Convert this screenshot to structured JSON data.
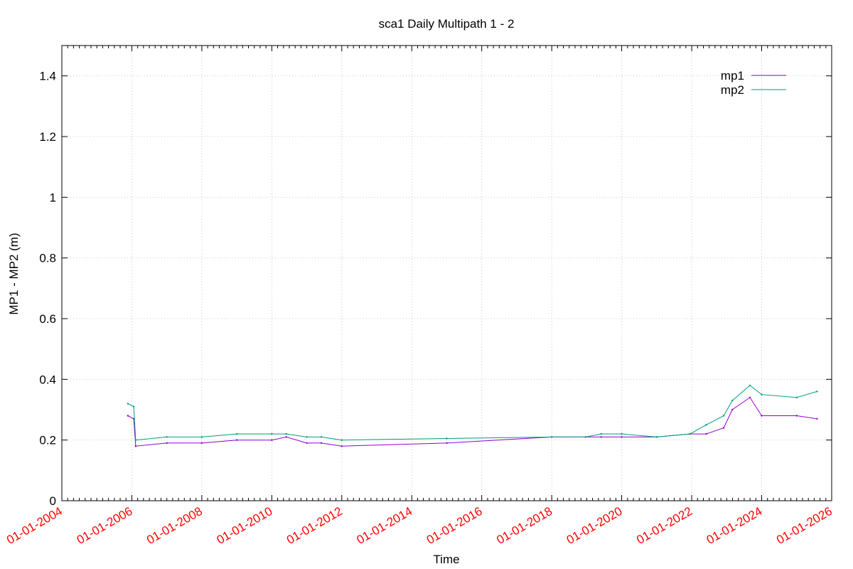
{
  "chart_data": {
    "type": "line",
    "title": "sca1 Daily Multipath 1 - 2",
    "xlabel": "Time",
    "ylabel": "MP1 - MP2 (m)",
    "ylim": [
      0,
      1.5
    ],
    "xlim": [
      "2004-01-01",
      "2026-01-01"
    ],
    "y_ticks": [
      "0",
      "0.2",
      "0.4",
      "0.6",
      "0.8",
      "1",
      "1.2",
      "1.4"
    ],
    "x_ticks": [
      "01-01-2004",
      "01-01-2006",
      "01-01-2008",
      "01-01-2010",
      "01-01-2012",
      "01-01-2014",
      "01-01-2016",
      "01-01-2018",
      "01-01-2020",
      "01-01-2022",
      "01-01-2024",
      "01-01-2026"
    ],
    "x_tick_color": "#ff0000",
    "grid": true,
    "legend": "top-right",
    "series": [
      {
        "name": "mp1",
        "color": "#9400d3",
        "points": [
          [
            "2005-11-20",
            0.28
          ],
          [
            "2006-01-20",
            0.27
          ],
          [
            "2006-02-10",
            0.18
          ],
          [
            "2007-01-01",
            0.19
          ],
          [
            "2008-01-01",
            0.19
          ],
          [
            "2009-01-01",
            0.2
          ],
          [
            "2010-01-01",
            0.2
          ],
          [
            "2010-06-01",
            0.21
          ],
          [
            "2011-01-01",
            0.19
          ],
          [
            "2011-06-01",
            0.19
          ],
          [
            "2012-01-01",
            0.18
          ],
          [
            "2015-01-01",
            0.19
          ],
          [
            "2018-01-01",
            0.21
          ],
          [
            "2018-12-20",
            0.21
          ],
          [
            "2019-06-01",
            0.21
          ],
          [
            "2020-01-01",
            0.21
          ],
          [
            "2021-01-01",
            0.21
          ],
          [
            "2021-12-15",
            0.22
          ],
          [
            "2022-06-01",
            0.22
          ],
          [
            "2022-12-01",
            0.24
          ],
          [
            "2023-03-01",
            0.3
          ],
          [
            "2023-09-01",
            0.34
          ],
          [
            "2024-01-01",
            0.28
          ],
          [
            "2025-01-01",
            0.28
          ],
          [
            "2025-08-01",
            0.27
          ]
        ]
      },
      {
        "name": "mp2",
        "color": "#009e73",
        "points": [
          [
            "2005-11-20",
            0.32
          ],
          [
            "2006-01-20",
            0.31
          ],
          [
            "2006-02-10",
            0.2
          ],
          [
            "2007-01-01",
            0.21
          ],
          [
            "2008-01-01",
            0.21
          ],
          [
            "2009-01-01",
            0.22
          ],
          [
            "2010-01-01",
            0.22
          ],
          [
            "2010-06-01",
            0.22
          ],
          [
            "2011-01-01",
            0.21
          ],
          [
            "2011-06-01",
            0.21
          ],
          [
            "2012-01-01",
            0.2
          ],
          [
            "2015-01-01",
            0.205
          ],
          [
            "2018-01-01",
            0.21
          ],
          [
            "2018-12-20",
            0.21
          ],
          [
            "2019-06-01",
            0.22
          ],
          [
            "2020-01-01",
            0.22
          ],
          [
            "2021-01-01",
            0.21
          ],
          [
            "2021-12-15",
            0.22
          ],
          [
            "2022-06-01",
            0.25
          ],
          [
            "2022-12-01",
            0.28
          ],
          [
            "2023-03-01",
            0.33
          ],
          [
            "2023-09-01",
            0.38
          ],
          [
            "2024-01-01",
            0.35
          ],
          [
            "2025-01-01",
            0.34
          ],
          [
            "2025-08-01",
            0.36
          ]
        ]
      }
    ]
  }
}
